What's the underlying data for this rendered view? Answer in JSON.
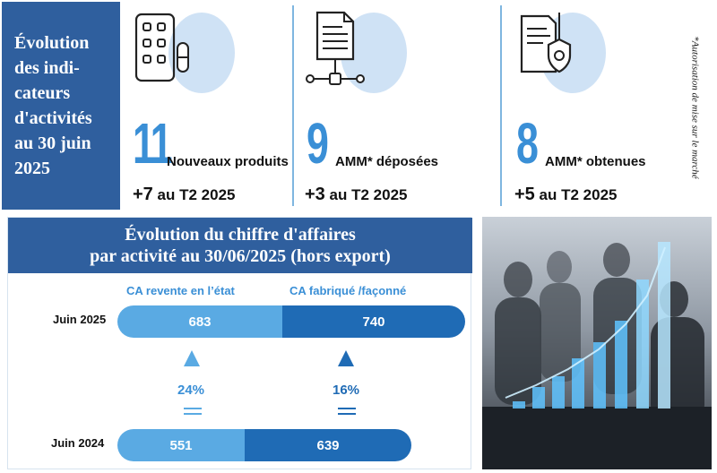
{
  "top": {
    "title": "Évolution\ndes indi-\ncateurs\nd'activités\nau 30 juin\n2025",
    "stats": [
      {
        "number": "11",
        "label": "Nouveaux produits",
        "delta_prefix": "+7",
        "delta_suffix": " au T2 2025",
        "icon": "pill-blister-icon"
      },
      {
        "number": "9",
        "label": "AMM* déposées",
        "delta_prefix": "+3",
        "delta_suffix": " au T2 2025",
        "icon": "document-network-icon"
      },
      {
        "number": "8",
        "label": "AMM* obtenues",
        "delta_prefix": "+5",
        "delta_suffix": " au T2 2025",
        "icon": "document-shield-icon"
      }
    ],
    "footnote": "*Autorisation de mise sur le marché"
  },
  "ca": {
    "title_line1": "Évolution du chiffre d'affaires",
    "title_line2": "par activité au 30/06/2025 (hors export)",
    "legend_resale": "CA revente en l’état",
    "legend_manufactured": "CA fabriqué /façonné",
    "rows": [
      {
        "year": "Juin 2025",
        "resale": "683",
        "manufactured": "740"
      },
      {
        "year": "Juin 2024",
        "resale": "551",
        "manufactured": "639"
      }
    ],
    "growth_resale": "24%",
    "growth_manufactured": "16%",
    "colors": {
      "light": "#5aaae3",
      "dark": "#1f6bb5",
      "header": "#2f5f9e"
    }
  },
  "photo": {
    "icon": "business-growth-chart-icon"
  }
}
